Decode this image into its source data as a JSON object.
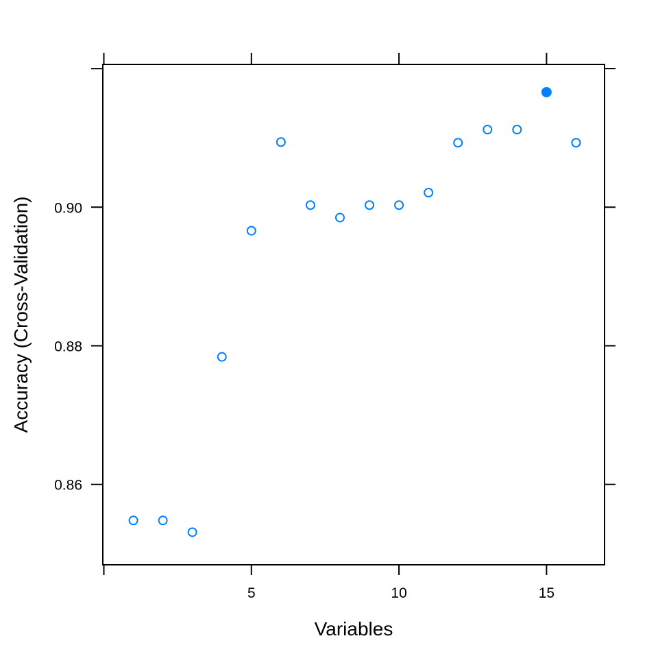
{
  "chart_data": {
    "type": "scatter",
    "title": "",
    "xlabel": "Variables",
    "ylabel": "Accuracy (Cross-Validation)",
    "xlim": [
      0,
      17
    ],
    "ylim": [
      0.8484,
      0.9206
    ],
    "x_ticks": [
      5,
      10,
      15
    ],
    "x_tick_labels": [
      "5",
      "10",
      "15"
    ],
    "y_ticks": [
      0.86,
      0.88,
      0.9
    ],
    "y_tick_labels": [
      "0.86",
      "0.88",
      "0.90"
    ],
    "grid": false,
    "series": [
      {
        "x": [
          1,
          2,
          3,
          4,
          5,
          6,
          7,
          8,
          9,
          10,
          11,
          12,
          13,
          14,
          15,
          16
        ],
        "y": [
          0.8548,
          0.8548,
          0.8531,
          0.8784,
          0.8966,
          0.9094,
          0.9003,
          0.8985,
          0.9003,
          0.9003,
          0.9021,
          0.9093,
          0.9112,
          0.9112,
          0.9166,
          0.9093
        ]
      }
    ],
    "highlight": {
      "x": 15,
      "y": 0.9166
    },
    "point_color": "#0080ff"
  }
}
